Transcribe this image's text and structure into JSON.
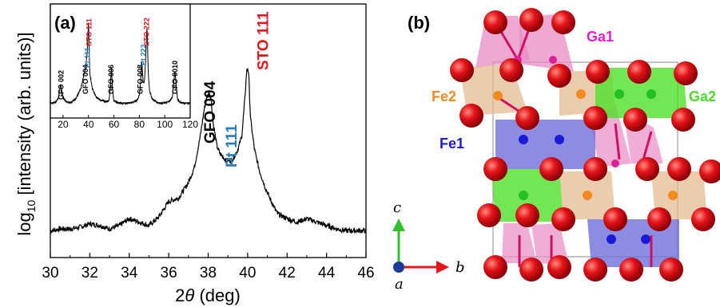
{
  "chart_data": [
    {
      "panel": "(a)",
      "type": "line",
      "xlabel_prefix": "2",
      "xlabel_symbol": "θ",
      "xlabel_suffix": " (deg)",
      "ylabel_prefix": "log",
      "ylabel_sub": "10",
      "ylabel_suffix": " [intensity (arb. units)]",
      "xlim": [
        30,
        46
      ],
      "xticks": [
        "30",
        "32",
        "34",
        "36",
        "38",
        "40",
        "42",
        "44",
        "46"
      ],
      "series": [
        {
          "x": [
            30,
            30.5,
            31,
            31.5,
            32,
            32.5,
            33,
            33.5,
            34,
            34.5,
            35,
            35.5,
            36,
            36.5,
            37,
            37.3,
            37.6,
            37.8,
            37.95,
            38.05,
            38.15,
            38.25,
            38.45,
            38.6,
            38.9,
            39.2,
            39.5,
            39.7,
            39.85,
            39.95,
            40.0,
            40.05,
            40.15,
            40.35,
            40.6,
            40.9,
            41.2,
            41.5,
            42,
            42.5,
            43,
            43.5,
            44,
            44.5,
            45,
            45.5,
            46
          ],
          "y": [
            0.05,
            0.06,
            0.06,
            0.07,
            0.09,
            0.08,
            0.06,
            0.08,
            0.12,
            0.1,
            0.08,
            0.13,
            0.22,
            0.24,
            0.33,
            0.42,
            0.6,
            0.76,
            0.83,
            0.86,
            0.82,
            0.68,
            0.54,
            0.5,
            0.46,
            0.46,
            0.52,
            0.6,
            0.8,
            0.98,
            1.0,
            0.97,
            0.7,
            0.52,
            0.4,
            0.3,
            0.22,
            0.15,
            0.12,
            0.1,
            0.12,
            0.1,
            0.08,
            0.06,
            0.05,
            0.05,
            0.05
          ]
        }
      ],
      "peaks": [
        {
          "label": "GFO 004",
          "x": 38.1,
          "color": "#000000"
        },
        {
          "label": "Pt 111",
          "x": 39.2,
          "color": "#2a7ab9"
        },
        {
          "label": "STO 111",
          "x": 40.8,
          "color": "#e8161b"
        }
      ],
      "inset": {
        "xlim": [
          10,
          120
        ],
        "xticks": [
          "20",
          "40",
          "60",
          "80",
          "100",
          "120"
        ],
        "series": [
          {
            "x": [
              10,
              14,
              16,
              18,
              20,
              22,
              24,
              26,
              30,
              34,
              36,
              37,
              38,
              39,
              40,
              40.5,
              41,
              43,
              46,
              50,
              54,
              56,
              57,
              58,
              59,
              60,
              62,
              66,
              70,
              74,
              78,
              80,
              81,
              82,
              83,
              84,
              85,
              86,
              86.5,
              87,
              88,
              90,
              94,
              98,
              102,
              104,
              106,
              107,
              108,
              109,
              110,
              112,
              116,
              120
            ],
            "y": [
              0.05,
              0.06,
              0.1,
              0.26,
              0.12,
              0.07,
              0.06,
              0.06,
              0.1,
              0.22,
              0.35,
              0.42,
              0.5,
              0.62,
              0.96,
              0.7,
              0.4,
              0.22,
              0.12,
              0.08,
              0.07,
              0.08,
              0.2,
              0.45,
              0.2,
              0.08,
              0.06,
              0.05,
              0.05,
              0.06,
              0.08,
              0.14,
              0.3,
              0.52,
              0.28,
              0.3,
              0.56,
              0.92,
              0.72,
              0.4,
              0.2,
              0.1,
              0.06,
              0.05,
              0.06,
              0.08,
              0.12,
              0.28,
              0.42,
              0.25,
              0.1,
              0.06,
              0.05,
              0.05
            ]
          }
        ],
        "peaks": [
          {
            "label": "GFO 002",
            "x": 18.5,
            "color": "#000000"
          },
          {
            "label": "GFO 004",
            "x": 37.5,
            "color": "#000000"
          },
          {
            "label": "Pt 111",
            "x": 39.2,
            "color": "#2a7ab9"
          },
          {
            "label": "STO 111",
            "x": 40.5,
            "color": "#e8161b"
          },
          {
            "label": "GFO 006",
            "x": 57.8,
            "color": "#000000"
          },
          {
            "label": "GFO 008",
            "x": 80.8,
            "color": "#000000"
          },
          {
            "label": "Pt 222",
            "x": 83.2,
            "color": "#2a7ab9"
          },
          {
            "label": "STO 222",
            "x": 85.7,
            "color": "#e8161b"
          },
          {
            "label": "GFO 0010",
            "x": 108.2,
            "color": "#000000"
          }
        ]
      }
    }
  ],
  "figure_b": {
    "panel": "(b)",
    "sites": [
      {
        "label": "Ga1",
        "color": "#e020d0"
      },
      {
        "label": "Fe2",
        "color": "#f28a1e"
      },
      {
        "label": "Ga2",
        "color": "#4cdc2c"
      },
      {
        "label": "Fe1",
        "color": "#1a1ad8"
      }
    ],
    "axes": {
      "c": "c",
      "b": "b",
      "a": "a"
    },
    "colors": {
      "oxygen": "#e4141a",
      "ga1_poly": "#e88cc4",
      "fe2_poly": "#e2b88a",
      "ga2_poly": "#4fe028",
      "fe1_poly": "#6f70d8",
      "bond": "#d01060"
    }
  }
}
